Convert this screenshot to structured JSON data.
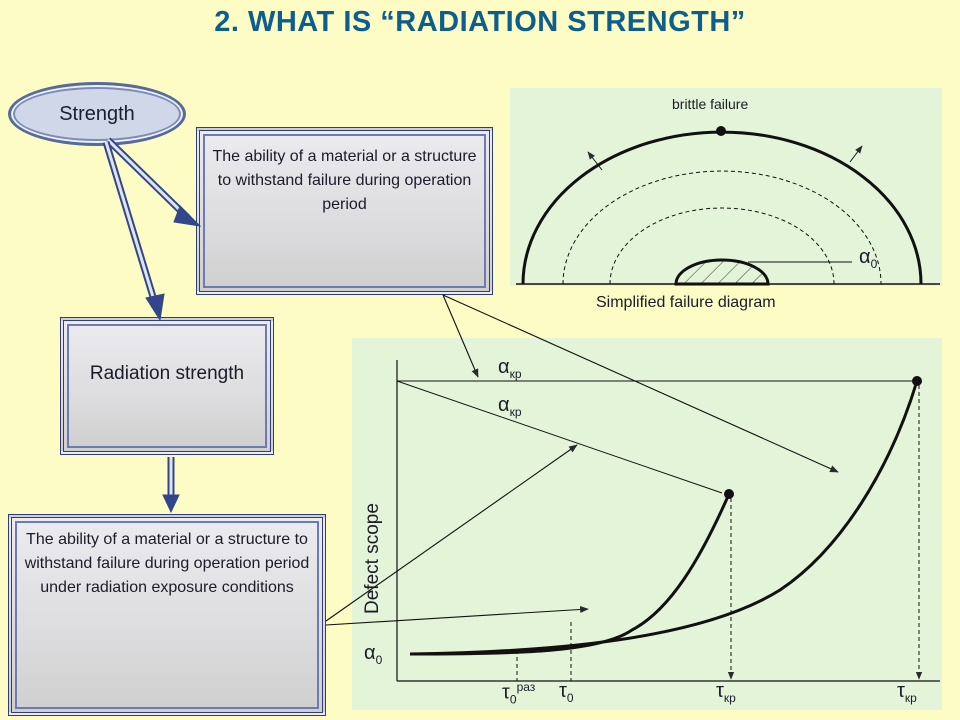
{
  "title": "2.  WHAT IS “RADIATION STRENGTH”",
  "strength_label": "Strength",
  "box_definition": "The ability of a material or a structure to withstand  failure during operation period",
  "box_radiation": "Radiation strength",
  "box_radiation_definition": "The ability of a material or a structure to withstand  failure during operation period  under radiation exposure conditions",
  "failure_diagram": {
    "top_label": "brittle failure",
    "alpha_label": "α",
    "alpha_sub": "0",
    "caption": "Simplified failure diagram"
  },
  "defect_chart": {
    "ylabel": "Defect scope",
    "alpha_kr_upper": "α",
    "alpha_kr_upper_sub": "кр",
    "alpha_kr_lower": "α",
    "alpha_kr_lower_sub": "кр",
    "alpha0": "α",
    "alpha0_sub": "0",
    "tick_tau0_raz": "τ",
    "tick_tau0_raz_sub": "0",
    "tick_tau0_raz_sup": "раз",
    "tick_tau0": "τ",
    "tick_tau0_sub": "0",
    "tick_taukr_1": "τ",
    "tick_taukr_1_sub": "кр",
    "tick_taukr_2": "τ",
    "tick_taukr_2_sub": "кр"
  },
  "colors": {
    "title": "#0d5e8e",
    "background": "#fcfcc4",
    "panel": "#e4f4d9",
    "box_border": "#2e3e7a",
    "arrow": "#34468a"
  }
}
